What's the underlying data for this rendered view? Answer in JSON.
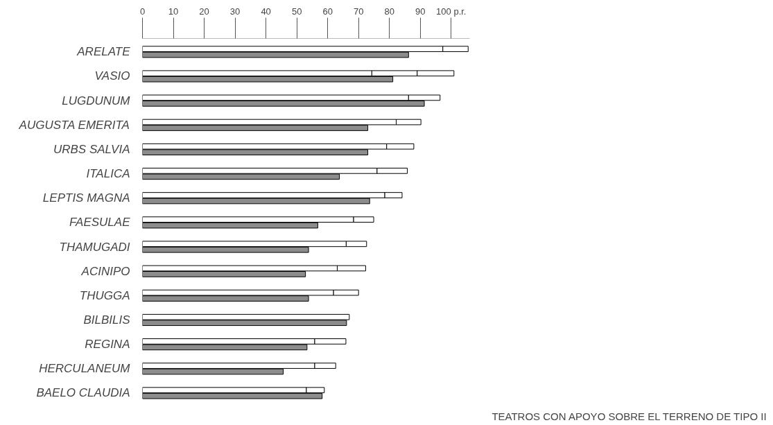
{
  "chart_data": {
    "type": "bar",
    "orientation": "horizontal",
    "categories": [
      "ARELATE",
      "VASIO",
      "LUGDUNUM",
      "AUGUSTA EMERITA",
      "URBS SALVIA",
      "ITALICA",
      "LEPTIS MAGNA",
      "FAESULAE",
      "THAMUGADI",
      "ACINIPO",
      "THUGGA",
      "BILBILIS",
      "REGINA",
      "HERCULANEUM",
      "BAELO CLAUDIA"
    ],
    "series": [
      {
        "color": "#ffffff",
        "base": [
          0,
          0,
          0,
          0,
          0,
          0,
          0,
          0,
          0,
          0,
          0,
          0,
          0,
          0,
          0
        ],
        "values": [
          97.3,
          74.3,
          86.2,
          82.2,
          79.1,
          76.0,
          78.5,
          68.4,
          66.0,
          63.1,
          61.9,
          67.0,
          55.8,
          55.8,
          53.1
        ]
      },
      {
        "color": "#ffffff",
        "base": [
          97.3,
          74.3,
          86.2,
          82.2,
          79.1,
          76.0,
          78.5,
          68.4,
          66.0,
          63.1,
          61.9,
          null,
          55.8,
          55.8,
          53.1
        ],
        "values": [
          8.2,
          14.7,
          10.2,
          8.0,
          8.8,
          9.8,
          5.6,
          6.5,
          6.6,
          9.2,
          8.1,
          null,
          10.1,
          6.8,
          5.8
        ]
      },
      {
        "color": "#ffffff",
        "base": [
          null,
          89.0,
          null,
          null,
          null,
          null,
          null,
          null,
          null,
          null,
          null,
          null,
          null,
          null,
          null
        ],
        "values": [
          null,
          11.9,
          null,
          null,
          null,
          null,
          null,
          null,
          null,
          null,
          null,
          null,
          null,
          null,
          null
        ]
      },
      {
        "color": "#8c8c8c",
        "values": [
          86.2,
          81.1,
          91.3,
          73.0,
          73.0,
          63.8,
          73.6,
          56.8,
          53.8,
          52.8,
          53.8,
          66.1,
          53.3,
          45.6,
          58.2
        ]
      }
    ],
    "xlim": [
      0,
      106
    ],
    "xticks": [
      0,
      10,
      20,
      30,
      40,
      50,
      60,
      70,
      80,
      90,
      {
        "value": 100,
        "label": "100 p.r."
      }
    ],
    "grid": false,
    "annotations": [
      "TEATROS CON APOYO SOBRE EL TERRENO DE TIPO II"
    ]
  }
}
